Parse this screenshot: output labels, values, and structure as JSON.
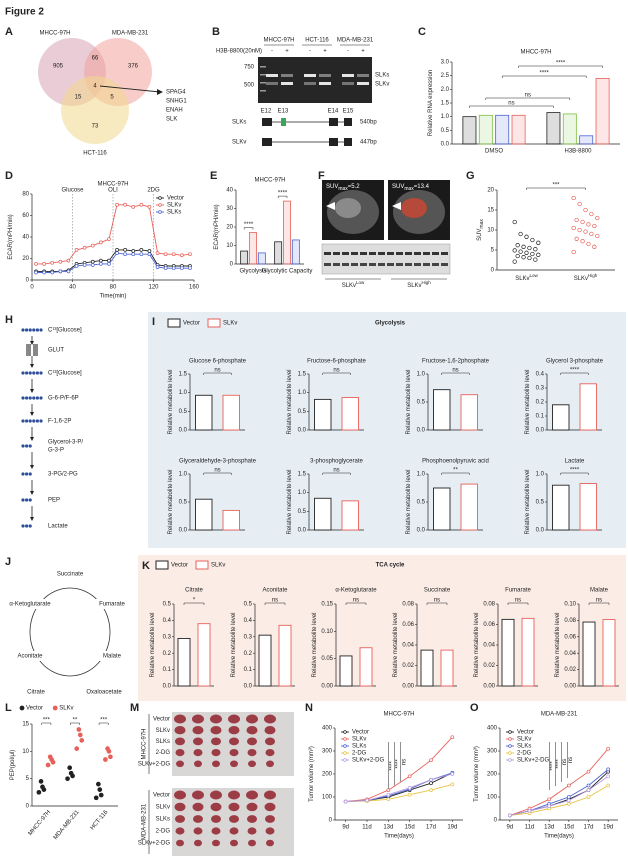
{
  "figure_title": "Figure 2",
  "panel_labels": [
    "A",
    "B",
    "C",
    "D",
    "E",
    "F",
    "G",
    "H",
    "I",
    "J",
    "K",
    "L",
    "M",
    "N",
    "O"
  ],
  "venn": {
    "sets": [
      "MHCC-97H",
      "MDA-MB-231",
      "HCT-116"
    ],
    "counts": {
      "mhcc_only": 905,
      "mhcc_mda": 66,
      "mda_only": 376,
      "mhcc_hct": 15,
      "all": 4,
      "mda_hct": 5,
      "hct_only": 73
    },
    "genes": [
      "SPAG4",
      "SNHG1",
      "ENAH",
      "SLK"
    ]
  },
  "gel": {
    "cell_lines": [
      "MHCC-97H",
      "HCT-116",
      "MDA-MB-231"
    ],
    "treatment": "H3B-8800(20nM)",
    "signs": [
      "-",
      "+",
      "-",
      "+",
      "-",
      "+"
    ],
    "markers": [
      "750",
      "500"
    ],
    "bands": [
      "SLKs",
      "SLKv"
    ],
    "exons": [
      "E12",
      "E13",
      "E14",
      "E15"
    ],
    "isoforms": [
      {
        "name": "SLKs",
        "size": "540bp"
      },
      {
        "name": "SLKv",
        "size": "447bp"
      }
    ]
  },
  "pet": {
    "images": [
      {
        "label": "SUV",
        "sub": "max",
        "value": "=5.2"
      },
      {
        "label": "SUV",
        "sub": "max",
        "value": "=13.4"
      }
    ],
    "groups": [
      {
        "base": "SLKv",
        "sup": "Low"
      },
      {
        "base": "SLKv",
        "sup": "High"
      }
    ]
  },
  "pathway": {
    "steps": [
      [
        "C¹³[Glucose]"
      ],
      [
        "GLUT"
      ],
      [
        "C¹³[Glucose]"
      ],
      [
        "G-6-P/F-6P"
      ],
      [
        "F-1,6-2P"
      ],
      [
        "Glycerol-3-P/",
        "G-3-P"
      ],
      [
        "3-PG/2-PG"
      ],
      [
        "PEP"
      ],
      [
        "Lactate"
      ]
    ]
  },
  "glycolysis": {
    "title": "Glycolysis",
    "legend": [
      "Vector",
      "SLKv"
    ]
  },
  "tca": {
    "title": "TCA cycle",
    "legend": [
      "Vector",
      "SLKv"
    ]
  },
  "tca_diagram": {
    "metabolites": [
      "Succinate",
      "α-Ketoglutarate",
      "Fumarate",
      "Aconitate",
      "Malate",
      "Citrate",
      "Oxaloacetate"
    ]
  },
  "tumors": {
    "rows": [
      "Vector",
      "SLKv",
      "SLKs",
      "2-DG",
      "SLKv+2-DG"
    ],
    "cell_lines": [
      "MHCC-97H",
      "MDA-MB-231"
    ]
  },
  "chart_data": [
    {
      "type": "bar",
      "title": "MHCC-97H",
      "ylabel": "Relative RNA expression",
      "categories": [
        "DMSO",
        "H3B-8800"
      ],
      "series": [
        {
          "name": "Total",
          "color": "#222222",
          "values": [
            1.0,
            1.15
          ]
        },
        {
          "name": "Pre-mRNA",
          "color": "#7cc243",
          "values": [
            1.05,
            1.1
          ]
        },
        {
          "name": "SLKv",
          "color": "#4a63d3",
          "values": [
            1.05,
            0.3
          ]
        },
        {
          "name": "SLKs",
          "color": "#e8605a",
          "values": [
            1.05,
            2.4
          ]
        }
      ],
      "ylim": [
        0,
        3
      ],
      "yticks": [
        {
          "value": 0,
          "label": "0.0"
        },
        0.5,
        {
          "value": 1,
          "label": "1.0"
        },
        1.5,
        {
          "value": 2,
          "label": "2.0"
        },
        2.5,
        {
          "value": 3,
          "label": "3.0"
        }
      ],
      "annotations": [
        "ns",
        "ns",
        "****",
        "****"
      ],
      "legend": "top"
    },
    {
      "type": "line",
      "title": "MHCC-97H",
      "xlabel": "Time(min)",
      "ylabel": "ECAR(mPH/min)",
      "x": [
        4,
        12,
        20,
        28,
        36,
        44,
        52,
        60,
        68,
        76,
        84,
        92,
        100,
        108,
        116,
        124,
        132,
        140,
        148,
        156
      ],
      "series": [
        {
          "name": "Vector",
          "color": "#222222",
          "values": [
            8,
            8,
            8,
            8,
            9,
            15,
            16,
            17,
            18,
            18,
            28,
            28,
            27,
            28,
            27,
            14,
            13,
            13,
            13,
            13
          ]
        },
        {
          "name": "SLKv",
          "color": "#e8605a",
          "values": [
            15,
            15,
            16,
            17,
            18,
            28,
            30,
            32,
            35,
            38,
            70,
            70,
            68,
            70,
            68,
            25,
            24,
            24,
            23,
            24
          ]
        },
        {
          "name": "SLKs",
          "color": "#4a63d3",
          "values": [
            7,
            7,
            7,
            8,
            8,
            13,
            14,
            14,
            15,
            15,
            25,
            24,
            24,
            24,
            24,
            12,
            11,
            11,
            11,
            11
          ]
        }
      ],
      "xlim": [
        0,
        160
      ],
      "xticks": [
        0,
        40,
        80,
        120,
        160
      ],
      "ylim": [
        0,
        80
      ],
      "yticks": [
        0,
        20,
        40,
        60,
        80
      ],
      "annotations": [
        {
          "text": "Glucose",
          "x": 40
        },
        {
          "text": "OLI",
          "x": 80
        },
        {
          "text": "2DG",
          "x": 120
        }
      ],
      "legend": "upper right"
    },
    {
      "type": "bar",
      "title": "MHCC-97H",
      "ylabel": "ECAR(mPH/min)",
      "categories": [
        "Glycolysis",
        "Glycolytic Capacity"
      ],
      "series": [
        {
          "name": "Vector",
          "color": "#222222",
          "values": [
            7,
            12
          ]
        },
        {
          "name": "SLKv",
          "color": "#e8605a",
          "values": [
            17,
            34
          ]
        },
        {
          "name": "SLKs",
          "color": "#4a63d3",
          "values": [
            6,
            13
          ]
        }
      ],
      "ylim": [
        0,
        40
      ],
      "yticks": [
        0,
        10,
        20,
        30,
        40
      ],
      "annotations": [
        "****",
        "****"
      ]
    },
    {
      "type": "dot",
      "ylabel": "SUV",
      "ylabel_sub": "max",
      "categories": [
        "SLKv",
        "SLKv"
      ],
      "category_sups": [
        "Low",
        "High"
      ],
      "colors": [
        "#222222",
        "#e8605a"
      ],
      "values": [
        [
          2.1,
          2.6,
          3.0,
          3.2,
          3.5,
          3.8,
          4.0,
          4.3,
          4.6,
          4.9,
          5.2,
          5.5,
          5.8,
          6.2,
          6.8,
          7.5,
          8.3,
          9.0,
          12.0
        ],
        [
          4.5,
          5.8,
          6.5,
          7.2,
          7.8,
          8.5,
          9.0,
          9.6,
          10.0,
          10.5,
          11.0,
          11.4,
          12.0,
          12.5,
          13.0,
          14.0,
          15.0,
          16.5,
          18.0
        ]
      ],
      "ylim": [
        0,
        20
      ],
      "yticks": [
        0,
        5,
        10,
        15,
        20
      ],
      "annotations": [
        "***"
      ]
    },
    {
      "type": "bar",
      "title": "Glucose 6-phosphate",
      "ylabel": "Relative metabolite level",
      "values": [
        0.93,
        0.93
      ],
      "colors": [
        "#222222",
        "#e8605a"
      ],
      "ylim": [
        0,
        1.5
      ],
      "yticks": [
        {
          "value": 0,
          "label": "0.0"
        },
        0.5,
        {
          "value": 1,
          "label": "1.0"
        },
        1.5
      ],
      "annotations": [
        "ns"
      ]
    },
    {
      "type": "bar",
      "title": "Fructose-6-phosphate",
      "ylabel": "Relative metabolite level",
      "values": [
        0.82,
        0.87
      ],
      "colors": [
        "#222222",
        "#e8605a"
      ],
      "ylim": [
        0,
        1.5
      ],
      "yticks": [
        {
          "value": 0,
          "label": "0.0"
        },
        0.5,
        {
          "value": 1,
          "label": "1.0"
        },
        1.5
      ],
      "annotations": [
        "ns"
      ]
    },
    {
      "type": "bar",
      "title": "Fructose-1,6-2phosphate",
      "ylabel": "Relative metabolite level",
      "values": [
        0.72,
        0.63
      ],
      "colors": [
        "#222222",
        "#e8605a"
      ],
      "ylim": [
        0,
        1
      ],
      "yticks": [
        {
          "value": 0,
          "label": "0.0"
        },
        0.5,
        {
          "value": 1,
          "label": "1.0"
        }
      ],
      "annotations": [
        "ns"
      ]
    },
    {
      "type": "bar",
      "title": "Glycerol 3-phosphate",
      "ylabel": "Relative metabolite level",
      "values": [
        0.18,
        0.33
      ],
      "colors": [
        "#222222",
        "#e8605a"
      ],
      "ylim": [
        0,
        0.4
      ],
      "yticks": [
        {
          "value": 0,
          "label": "0.0"
        },
        0.1,
        0.2,
        0.3,
        0.4
      ],
      "annotations": [
        "****"
      ]
    },
    {
      "type": "bar",
      "title": "Glyceraldehyde-3-phosphate",
      "ylabel": "Relative metabolite level",
      "values": [
        0.55,
        0.35
      ],
      "colors": [
        "#222222",
        "#e8605a"
      ],
      "ylim": [
        0,
        1
      ],
      "yticks": [
        {
          "value": 0,
          "label": "0.0"
        },
        0.5,
        {
          "value": 1,
          "label": "1.0"
        }
      ],
      "annotations": [
        "ns"
      ]
    },
    {
      "type": "bar",
      "title": "3-phosphoglycerate",
      "ylabel": "Relative metabolite level",
      "values": [
        0.85,
        0.78
      ],
      "colors": [
        "#222222",
        "#e8605a"
      ],
      "ylim": [
        0,
        1.5
      ],
      "yticks": [
        {
          "value": 0,
          "label": "0.0"
        },
        0.5,
        {
          "value": 1,
          "label": "1.0"
        },
        1.5
      ],
      "annotations": [
        "ns"
      ]
    },
    {
      "type": "bar",
      "title": "Phosphoenolpyruvic acid",
      "ylabel": "Relative metabolite level",
      "values": [
        0.75,
        0.82
      ],
      "colors": [
        "#222222",
        "#e8605a"
      ],
      "ylim": [
        0,
        1
      ],
      "yticks": [
        {
          "value": 0,
          "label": "0.0"
        },
        0.5,
        {
          "value": 1,
          "label": "1.0"
        }
      ],
      "annotations": [
        "**"
      ]
    },
    {
      "type": "bar",
      "title": "Lactate",
      "ylabel": "Relative metabolite level",
      "values": [
        0.8,
        0.83
      ],
      "colors": [
        "#222222",
        "#e8605a"
      ],
      "ylim": [
        0,
        1
      ],
      "yticks": [
        {
          "value": 0,
          "label": "0.0"
        },
        0.5,
        {
          "value": 1,
          "label": "1.0"
        }
      ],
      "annotations": [
        "****"
      ]
    },
    {
      "type": "bar",
      "title": "Citrate",
      "ylabel": "Relative metabolite level",
      "values": [
        0.29,
        0.38
      ],
      "colors": [
        "#222222",
        "#e8605a"
      ],
      "ylim": [
        0,
        0.5
      ],
      "yticks": [
        {
          "value": 0,
          "label": "0.0"
        },
        0.1,
        0.2,
        0.3,
        0.4,
        0.5
      ],
      "annotations": [
        "*"
      ]
    },
    {
      "type": "bar",
      "title": "Aconitate",
      "ylabel": "Relative metabolite level",
      "values": [
        0.31,
        0.37
      ],
      "colors": [
        "#222222",
        "#e8605a"
      ],
      "ylim": [
        0,
        0.5
      ],
      "yticks": [
        {
          "value": 0,
          "label": "0.0"
        },
        0.1,
        0.2,
        0.3,
        0.4,
        0.5
      ],
      "annotations": [
        "ns"
      ]
    },
    {
      "type": "bar",
      "title": "α-Ketoglutarate",
      "ylabel": "Relative metabolite level",
      "values": [
        0.055,
        0.07
      ],
      "colors": [
        "#222222",
        "#e8605a"
      ],
      "ylim": [
        0,
        0.15
      ],
      "yticks": [
        {
          "value": 0,
          "label": "0.00"
        },
        0.05,
        {
          "value": 0.1,
          "label": "0.10"
        },
        0.15
      ],
      "annotations": [
        "ns"
      ]
    },
    {
      "type": "bar",
      "title": "Succinate",
      "ylabel": "Relative metabolite level",
      "values": [
        0.035,
        0.035
      ],
      "colors": [
        "#222222",
        "#e8605a"
      ],
      "ylim": [
        0,
        0.08
      ],
      "yticks": [
        {
          "value": 0,
          "label": "0.00"
        },
        0.02,
        0.04,
        0.06,
        0.08
      ],
      "annotations": [
        "ns"
      ]
    },
    {
      "type": "bar",
      "title": "Fumarate",
      "ylabel": "Relative metabolite level",
      "values": [
        0.065,
        0.066
      ],
      "colors": [
        "#222222",
        "#e8605a"
      ],
      "ylim": [
        0,
        0.08
      ],
      "yticks": [
        {
          "value": 0,
          "label": "0.00"
        },
        0.02,
        0.04,
        0.06,
        0.08
      ],
      "annotations": [
        "ns"
      ]
    },
    {
      "type": "bar",
      "title": "Malate",
      "ylabel": "Relative metabolite level",
      "values": [
        0.078,
        0.081
      ],
      "colors": [
        "#222222",
        "#e8605a"
      ],
      "ylim": [
        0,
        0.1
      ],
      "yticks": [
        {
          "value": 0,
          "label": "0.00"
        },
        0.02,
        0.04,
        0.06,
        0.08,
        {
          "value": 0.1,
          "label": "0.10"
        }
      ],
      "annotations": [
        "ns"
      ]
    },
    {
      "type": "dot",
      "ylabel": "PEP(pol/μl)",
      "categories": [
        "MHCC-97H",
        "MDA-MB-231",
        "HCT-116"
      ],
      "series": [
        {
          "name": "Vector",
          "color": "#222222",
          "values": [
            [
              2.5,
              3,
              3.5,
              4.5
            ],
            [
              5,
              5.5,
              6,
              7
            ],
            [
              1.5,
              2,
              3,
              4
            ]
          ]
        },
        {
          "name": "SLKv",
          "color": "#e8605a",
          "values": [
            [
              7.5,
              8,
              8.5,
              9
            ],
            [
              10.5,
              12,
              13,
              14
            ],
            [
              8.5,
              9,
              10,
              10.5
            ]
          ]
        }
      ],
      "ylim": [
        0,
        15
      ],
      "yticks": [
        0,
        5,
        10,
        15
      ],
      "annotations": [
        "***",
        "**",
        "***"
      ],
      "legend": "top"
    },
    {
      "type": "line",
      "title": "MHCC-97H",
      "xlabel": "Time(days)",
      "ylabel": "Tumor volume (mm³)",
      "categories": [
        "9d",
        "11d",
        "13d",
        "15d",
        "17d",
        "19d"
      ],
      "series": [
        {
          "name": "Vector",
          "color": "#222222",
          "values": [
            80,
            85,
            100,
            130,
            160,
            205
          ]
        },
        {
          "name": "SLKv",
          "color": "#e8605a",
          "values": [
            80,
            90,
            130,
            190,
            260,
            360
          ]
        },
        {
          "name": "SLKs",
          "color": "#4a63d3",
          "values": [
            80,
            85,
            105,
            135,
            175,
            205
          ]
        },
        {
          "name": "2-DG",
          "color": "#e8c440",
          "values": [
            80,
            82,
            90,
            110,
            130,
            155
          ]
        },
        {
          "name": "SLKv+2-DG",
          "color": "#b59be0",
          "values": [
            80,
            85,
            110,
            140,
            175,
            200
          ]
        }
      ],
      "ylim": [
        0,
        400
      ],
      "yticks": [
        0,
        100,
        200,
        300,
        400
      ],
      "annotations": [
        "****",
        "****",
        "ns"
      ],
      "legend": "upper left"
    },
    {
      "type": "line",
      "title": "MDA-MB-231",
      "xlabel": "Time(days)",
      "ylabel": "Tumor volume (mm³)",
      "categories": [
        "9d",
        "11d",
        "13d",
        "15d",
        "17d",
        "19d"
      ],
      "series": [
        {
          "name": "Vector",
          "color": "#222222",
          "values": [
            20,
            40,
            60,
            90,
            130,
            210
          ]
        },
        {
          "name": "SLKv",
          "color": "#e8605a",
          "values": [
            20,
            50,
            90,
            150,
            210,
            310
          ]
        },
        {
          "name": "SLKs",
          "color": "#4a63d3",
          "values": [
            20,
            40,
            70,
            100,
            150,
            220
          ]
        },
        {
          "name": "2-DG",
          "color": "#e8c440",
          "values": [
            20,
            30,
            50,
            70,
            100,
            150
          ]
        },
        {
          "name": "SLKv+2-DG",
          "color": "#b59be0",
          "values": [
            20,
            40,
            60,
            85,
            130,
            190
          ]
        }
      ],
      "ylim": [
        0,
        400
      ],
      "yticks": [
        0,
        100,
        200,
        300,
        400
      ],
      "annotations": [
        "****",
        "****",
        "ns",
        "ns"
      ],
      "legend": "upper left"
    }
  ]
}
